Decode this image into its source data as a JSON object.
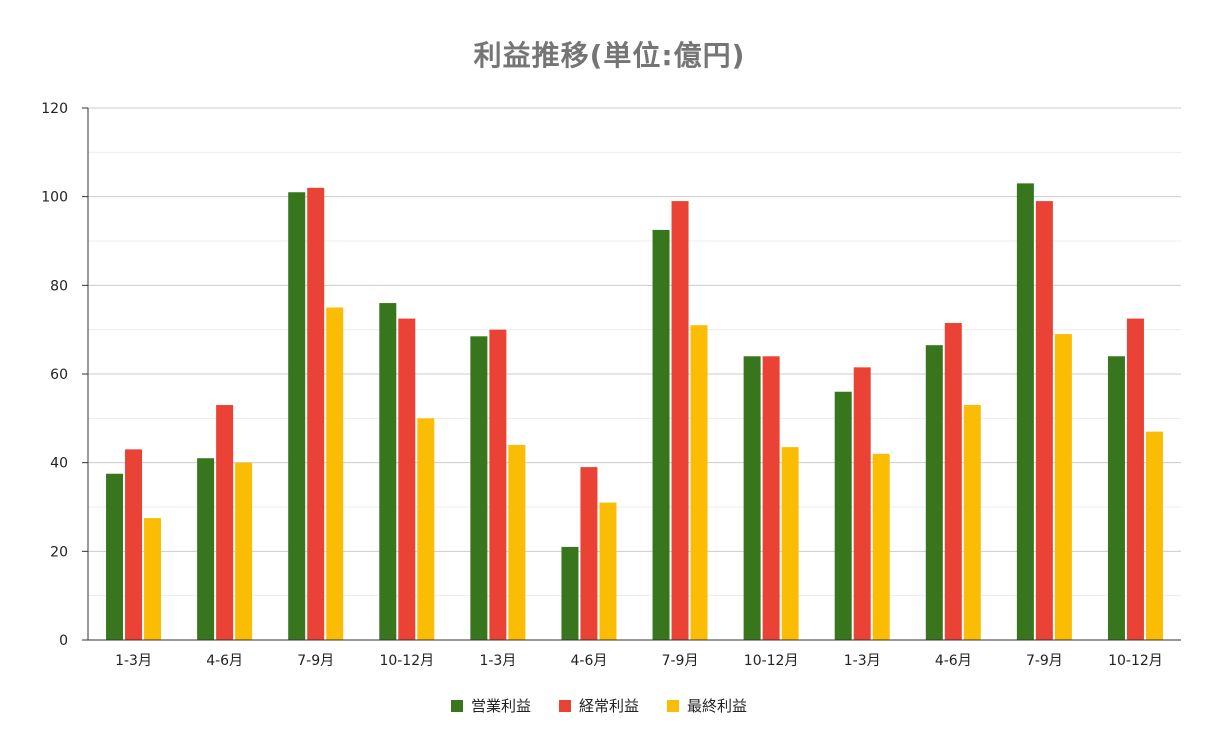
{
  "chart_data": {
    "type": "bar",
    "title": "利益推移(単位:億円)",
    "xlabel": "",
    "ylabel": "",
    "ylim": [
      0,
      120
    ],
    "yticks": [
      0,
      20,
      40,
      60,
      80,
      100,
      120
    ],
    "grid": true,
    "legend_position": "bottom",
    "categories": [
      "1-3月",
      "4-6月",
      "7-9月",
      "10-12月",
      "1-3月",
      "4-6月",
      "7-9月",
      "10-12月",
      "1-3月",
      "4-6月",
      "7-9月",
      "10-12月"
    ],
    "series": [
      {
        "name": "営業利益",
        "color": "#38761d",
        "values": [
          37.5,
          41,
          101,
          76,
          68.5,
          21,
          92.5,
          64,
          56,
          66.5,
          103,
          64
        ]
      },
      {
        "name": "経常利益",
        "color": "#ea4335",
        "values": [
          43,
          53,
          102,
          72.5,
          70,
          39,
          99,
          64,
          61.5,
          71.5,
          99,
          72.5
        ]
      },
      {
        "name": "最終利益",
        "color": "#fbbc04",
        "values": [
          27.5,
          40,
          75,
          50,
          44,
          31,
          71,
          43.5,
          42,
          53,
          69,
          47
        ]
      }
    ]
  }
}
